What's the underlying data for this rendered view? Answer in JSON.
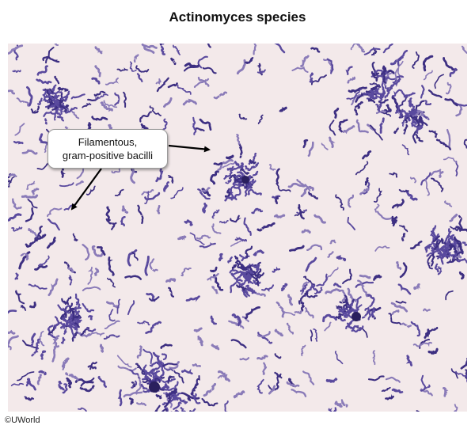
{
  "title": "Actinomyces species",
  "callout": {
    "line1": "Filamentous,",
    "line2": "gram-positive bacilli"
  },
  "credit": "©UWorld",
  "colors": {
    "background": "#f3e9ea",
    "stain_dark": "#3d2f82",
    "stain_mid": "#5a4a9e",
    "stain_light": "#8a7bb8"
  }
}
